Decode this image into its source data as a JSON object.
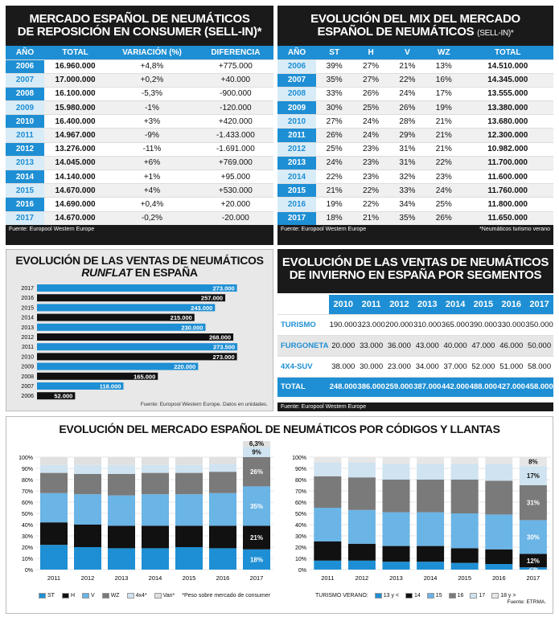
{
  "t1": {
    "title1": "MERCADO ESPAÑOL DE NEUMÁTICOS",
    "title2": "DE REPOSICIÓN EN CONSUMER (SELL-IN)*",
    "headers": [
      "AÑO",
      "TOTAL",
      "VARIACIÓN (%)",
      "DIFERENCIA"
    ],
    "rows": [
      [
        "2006",
        "16.960.000",
        "+4,8%",
        "+775.000"
      ],
      [
        "2007",
        "17.000.000",
        "+0,2%",
        "+40.000"
      ],
      [
        "2008",
        "16.100.000",
        "-5,3%",
        "-900.000"
      ],
      [
        "2009",
        "15.980.000",
        "-1%",
        "-120.000"
      ],
      [
        "2010",
        "16.400.000",
        "+3%",
        "+420.000"
      ],
      [
        "2011",
        "14.967.000",
        "-9%",
        "-1.433.000"
      ],
      [
        "2012",
        "13.276.000",
        "-11%",
        "-1.691.000"
      ],
      [
        "2013",
        "14.045.000",
        "+6%",
        "+769.000"
      ],
      [
        "2014",
        "14.140.000",
        "+1%",
        "+95.000"
      ],
      [
        "2015",
        "14.670.000",
        "+4%",
        "+530.000"
      ],
      [
        "2016",
        "14.690.000",
        "+0,4%",
        "+20.000"
      ],
      [
        "2017",
        "14.670.000",
        "-0,2%",
        "-20.000"
      ]
    ],
    "source": "Fuente: Europool Western Europe"
  },
  "t2": {
    "title1": "EVOLUCIÓN DEL MIX DEL MERCADO",
    "title2": "ESPAÑOL DE NEUMÁTICOS",
    "title2b": "(SELL-IN)*",
    "headers": [
      "AÑO",
      "ST",
      "H",
      "V",
      "WZ",
      "TOTAL"
    ],
    "rows": [
      [
        "2006",
        "39%",
        "27%",
        "21%",
        "13%",
        "14.510.000"
      ],
      [
        "2007",
        "35%",
        "27%",
        "22%",
        "16%",
        "14.345.000"
      ],
      [
        "2008",
        "33%",
        "26%",
        "24%",
        "17%",
        "13.555.000"
      ],
      [
        "2009",
        "30%",
        "25%",
        "26%",
        "19%",
        "13.380.000"
      ],
      [
        "2010",
        "27%",
        "24%",
        "28%",
        "21%",
        "13.680.000"
      ],
      [
        "2011",
        "26%",
        "24%",
        "29%",
        "21%",
        "12.300.000"
      ],
      [
        "2012",
        "25%",
        "23%",
        "31%",
        "21%",
        "10.982.000"
      ],
      [
        "2013",
        "24%",
        "23%",
        "31%",
        "22%",
        "11.700.000"
      ],
      [
        "2014",
        "22%",
        "23%",
        "32%",
        "23%",
        "11.600.000"
      ],
      [
        "2015",
        "21%",
        "22%",
        "33%",
        "24%",
        "11.760.000"
      ],
      [
        "2016",
        "19%",
        "22%",
        "34%",
        "25%",
        "11.800.000"
      ],
      [
        "2017",
        "18%",
        "21%",
        "35%",
        "26%",
        "11.650.000"
      ]
    ],
    "source": "Fuente: Europool Western Europe",
    "note": "*Neumáticos turismo verano"
  },
  "t3": {
    "title1": "EVOLUCIÓN DE LAS VENTAS DE NEUMÁTICOS",
    "title2a": "RUNFLAT",
    "title2b": " EN ESPAÑA",
    "source": "Fuente: Europool Western Europe. Datos en unidades."
  },
  "t4": {
    "title1": "EVOLUCIÓN DE LAS VENTAS DE NEUMÁTICOS",
    "title2": "DE INVIERNO EN ESPAÑA POR SEGMENTOS",
    "years": [
      "2010",
      "2011",
      "2012",
      "2013",
      "2014",
      "2015",
      "2016",
      "2017"
    ],
    "rows": [
      {
        "label": "TURISMO",
        "values": [
          "190.000",
          "323.000",
          "200.000",
          "310.000",
          "365.000",
          "390.000",
          "330.000",
          "350.000"
        ]
      },
      {
        "label": "FURGONETA",
        "values": [
          "20.000",
          "33.000",
          "36.000",
          "43.000",
          "40.000",
          "47.000",
          "46.000",
          "50.000"
        ]
      },
      {
        "label": "4X4-SUV",
        "values": [
          "38.000",
          "30.000",
          "23.000",
          "34.000",
          "37.000",
          "52.000",
          "51.000",
          "58.000"
        ]
      }
    ],
    "total": {
      "label": "TOTAL",
      "values": [
        "248.000",
        "386.000",
        "259.000",
        "387.000",
        "442.000",
        "488.000",
        "427.000",
        "458.000"
      ]
    },
    "source": "Fuente: Europool Western Europe"
  },
  "t5": {
    "title": "EVOLUCIÓN DEL MERCADO ESPAÑOL DE NEUMÁTICOS POR CÓDIGOS Y LLANTAS",
    "legend1": [
      {
        "name": "ST",
        "color": "#1e8fd4"
      },
      {
        "name": "H",
        "color": "#111111"
      },
      {
        "name": "V",
        "color": "#6ab4e6"
      },
      {
        "name": "WZ",
        "color": "#7a7a7a"
      },
      {
        "name": "4x4*",
        "color": "#cfe3f1"
      },
      {
        "name": "Van*",
        "color": "#e0e0e0"
      }
    ],
    "note1": "*Peso sobre mercado de consumer",
    "legend2_label": "TURISMO VERANO:",
    "legend2": [
      {
        "name": "13 y <",
        "color": "#1e8fd4"
      },
      {
        "name": "14",
        "color": "#111111"
      },
      {
        "name": "15",
        "color": "#6ab4e6"
      },
      {
        "name": "16",
        "color": "#7a7a7a"
      },
      {
        "name": "17",
        "color": "#cfe3f1"
      },
      {
        "name": "18 y >",
        "color": "#e6e6e6"
      }
    ],
    "source": "Fuente: ETRMA."
  },
  "chart_data": [
    {
      "type": "bar",
      "orientation": "horizontal",
      "categories": [
        "2017",
        "2016",
        "2015",
        "2014",
        "2013",
        "2012",
        "2011",
        "2010",
        "2009",
        "2008",
        "2007",
        "2006"
      ],
      "values": [
        273000,
        257000,
        243000,
        215000,
        230000,
        268000,
        273500,
        273000,
        220000,
        165000,
        118000,
        52000
      ],
      "labels": [
        "273.000",
        "257.000",
        "243.000",
        "215.000",
        "230.000",
        "268.000",
        "273.500",
        "273.000",
        "220.000",
        "165.000",
        "118.000",
        "52.000"
      ],
      "colors": [
        "blue",
        "black",
        "blue",
        "black",
        "blue",
        "black",
        "blue",
        "black",
        "blue",
        "black",
        "blue",
        "black"
      ]
    },
    {
      "type": "bar",
      "stacked": true,
      "categories": [
        "2011",
        "2012",
        "2013",
        "2014",
        "2015",
        "2016",
        "2017"
      ],
      "yticks": [
        "0%",
        "10%",
        "20%",
        "30%",
        "40%",
        "50%",
        "60%",
        "70%",
        "80%",
        "90%",
        "100%"
      ],
      "series": [
        {
          "name": "ST",
          "values": [
            22,
            20,
            19,
            19,
            20,
            19,
            18
          ]
        },
        {
          "name": "H",
          "values": [
            20,
            20,
            20,
            20,
            19,
            20,
            21
          ]
        },
        {
          "name": "V",
          "values": [
            26,
            27,
            27,
            28,
            28,
            29,
            35
          ]
        },
        {
          "name": "WZ",
          "values": [
            18,
            18,
            19,
            19,
            19,
            19,
            26
          ]
        },
        {
          "name": "4x4*",
          "values": [
            7,
            8,
            8,
            7,
            7,
            7,
            9
          ]
        },
        {
          "name": "Van*",
          "values": [
            7,
            7,
            7,
            7,
            7,
            6,
            6.3
          ]
        }
      ],
      "labels_2017": [
        "18%",
        "21%",
        "35%",
        "26%",
        "9%",
        "6,3%"
      ]
    },
    {
      "type": "bar",
      "stacked": true,
      "categories": [
        "2011",
        "2012",
        "2013",
        "2014",
        "2015",
        "2016",
        "2017"
      ],
      "yticks": [
        "0%",
        "10%",
        "20%",
        "30%",
        "40%",
        "50%",
        "60%",
        "70%",
        "80%",
        "90%",
        "100%"
      ],
      "series": [
        {
          "name": "13 y <",
          "values": [
            8,
            8,
            7,
            7,
            6,
            5,
            2
          ]
        },
        {
          "name": "14",
          "values": [
            17,
            15,
            14,
            14,
            13,
            13,
            12
          ]
        },
        {
          "name": "15",
          "values": [
            30,
            30,
            30,
            30,
            31,
            31,
            30
          ]
        },
        {
          "name": "16",
          "values": [
            28,
            29,
            29,
            29,
            30,
            30,
            31
          ]
        },
        {
          "name": "17",
          "values": [
            12,
            13,
            14,
            14,
            14,
            15,
            17
          ]
        },
        {
          "name": "18 y >",
          "values": [
            5,
            5,
            6,
            6,
            6,
            6,
            8
          ]
        }
      ],
      "labels_2017": [
        "2%",
        "12%",
        "30%",
        "31%",
        "17%",
        "8%"
      ]
    }
  ]
}
